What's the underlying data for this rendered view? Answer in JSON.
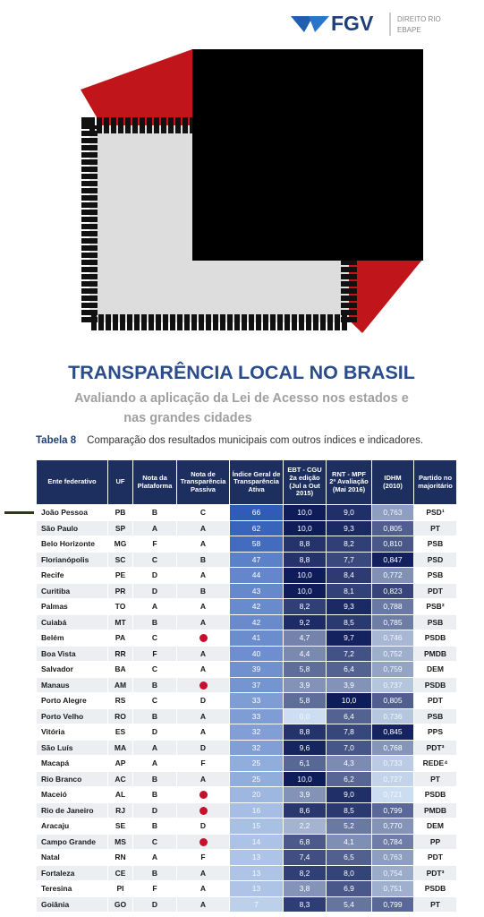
{
  "logo": {
    "brand": "FGV",
    "unit_line1": "DIREITO RIO",
    "unit_line2": "EBAPE"
  },
  "cover": {
    "title": "TRANSPARÊNCIA LOCAL NO BRASIL",
    "subtitle_line1": "Avaliando a aplicação da Lei de Acesso nos estados e",
    "subtitle_line2": "nas grandes cidades"
  },
  "table": {
    "label": "Tabela 8",
    "caption": "Comparação dos resultados municipais com outros índices e indicadores.",
    "headers": [
      "Ente federativo",
      "UF",
      "Nota da Plataforma",
      "Nota de Transparência Passiva",
      "Índice Geral de Transparência Ativa",
      "EBT - CGU 2a edição (Jul a Out 2015)",
      "RNT - MPF 2ª Avaliação (Mai 2016)",
      "IDHM (2010)",
      "Partido no majoritário"
    ],
    "rows": [
      [
        "João Pessoa",
        "PB",
        "B",
        "C",
        "66",
        "10,0",
        "9,0",
        "0,763",
        "PSD¹"
      ],
      [
        "São Paulo",
        "SP",
        "A",
        "A",
        "62",
        "10,0",
        "9,3",
        "0,805",
        "PT"
      ],
      [
        "Belo Horizonte",
        "MG",
        "F",
        "A",
        "58",
        "8,8",
        "8,2",
        "0,810",
        "PSB"
      ],
      [
        "Florianópolis",
        "SC",
        "C",
        "B",
        "47",
        "8,8",
        "7,7",
        "0,847",
        "PSD"
      ],
      [
        "Recife",
        "PE",
        "D",
        "A",
        "44",
        "10,0",
        "8,4",
        "0,772",
        "PSB"
      ],
      [
        "Curitiba",
        "PR",
        "D",
        "B",
        "43",
        "10,0",
        "8,1",
        "0,823",
        "PDT"
      ],
      [
        "Palmas",
        "TO",
        "A",
        "A",
        "42",
        "8,2",
        "9,3",
        "0,788",
        "PSB²"
      ],
      [
        "Cuiabá",
        "MT",
        "B",
        "A",
        "42",
        "9,2",
        "8,5",
        "0,785",
        "PSB"
      ],
      [
        "Belém",
        "PA",
        "C",
        null,
        "41",
        "4,7",
        "9,7",
        "0,746",
        "PSDB"
      ],
      [
        "Boa Vista",
        "RR",
        "F",
        "A",
        "40",
        "4,4",
        "7,2",
        "0,752",
        "PMDB"
      ],
      [
        "Salvador",
        "BA",
        "C",
        "A",
        "39",
        "5,8",
        "6,4",
        "0,759",
        "DEM"
      ],
      [
        "Manaus",
        "AM",
        "B",
        null,
        "37",
        "3,9",
        "3,9",
        "0,737",
        "PSDB"
      ],
      [
        "Porto Alegre",
        "RS",
        "C",
        "D",
        "33",
        "5,8",
        "10,0",
        "0,805",
        "PDT"
      ],
      [
        "Porto Velho",
        "RO",
        "B",
        "A",
        "33",
        "0,0",
        "6,4",
        "0,736",
        "PSB"
      ],
      [
        "Vitória",
        "ES",
        "D",
        "A",
        "32",
        "8,8",
        "7,8",
        "0,845",
        "PPS"
      ],
      [
        "São Luís",
        "MA",
        "A",
        "D",
        "32",
        "9,6",
        "7,0",
        "0,768",
        "PDT³"
      ],
      [
        "Macapá",
        "AP",
        "A",
        "F",
        "25",
        "6,1",
        "4,3",
        "0,733",
        "REDE⁴"
      ],
      [
        "Rio Branco",
        "AC",
        "B",
        "A",
        "25",
        "10,0",
        "6,2",
        "0,727",
        "PT"
      ],
      [
        "Maceió",
        "AL",
        "B",
        null,
        "20",
        "3,9",
        "9,0",
        "0,721",
        "PSDB"
      ],
      [
        "Rio de Janeiro",
        "RJ",
        "D",
        null,
        "16",
        "8,6",
        "8,5",
        "0,799",
        "PMDB"
      ],
      [
        "Aracaju",
        "SE",
        "B",
        "D",
        "15",
        "2,2",
        "5,2",
        "0,770",
        "DEM"
      ],
      [
        "Campo Grande",
        "MS",
        "C",
        null,
        "14",
        "6,8",
        "4,1",
        "0,784",
        "PP"
      ],
      [
        "Natal",
        "RN",
        "A",
        "F",
        "13",
        "7,4",
        "6,5",
        "0,763",
        "PDT"
      ],
      [
        "Fortaleza",
        "CE",
        "B",
        "A",
        "13",
        "8,2",
        "8,0",
        "0,754",
        "PDT³"
      ],
      [
        "Teresina",
        "PI",
        "F",
        "A",
        "13",
        "3,8",
        "6,9",
        "0,751",
        "PSDB"
      ],
      [
        "Goiânia",
        "GO",
        "D",
        "A",
        "7",
        "8,3",
        "5,4",
        "0,799",
        "PT"
      ]
    ]
  }
}
